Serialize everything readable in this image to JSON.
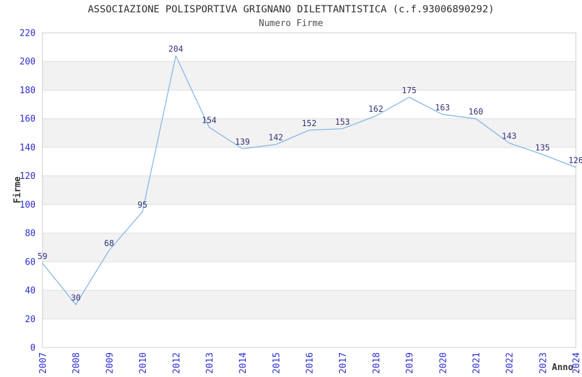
{
  "chart_data": {
    "type": "line",
    "title": "ASSOCIAZIONE POLISPORTIVA GRIGNANO DILETTANTISTICA (c.f.93006890292)",
    "subtitle": "Numero Firme",
    "xlabel": "Anno",
    "ylabel": "Firme",
    "categories": [
      "2007",
      "2008",
      "2009",
      "2010",
      "2012",
      "2013",
      "2014",
      "2015",
      "2016",
      "2017",
      "2018",
      "2019",
      "2020",
      "2021",
      "2022",
      "2023",
      "2024"
    ],
    "values": [
      59,
      30,
      68,
      95,
      204,
      154,
      139,
      142,
      152,
      153,
      162,
      175,
      163,
      160,
      143,
      135,
      126
    ],
    "ylim": [
      0,
      220
    ],
    "ytick_step": 20,
    "grid": "alternating-horizontal-bands",
    "legend": "none",
    "data_labels_visible": true,
    "colors": {
      "line": "#85b5e8",
      "data_label": "#333377",
      "tick_label": "#2b2bcc",
      "title": "#2e2e2e",
      "subtitle": "#4d4d4d",
      "axis_title": "#333333",
      "band": "#f2f2f2",
      "gridline": "#dedede",
      "plot_border": "#cccccc",
      "background": "#ffffff"
    }
  }
}
